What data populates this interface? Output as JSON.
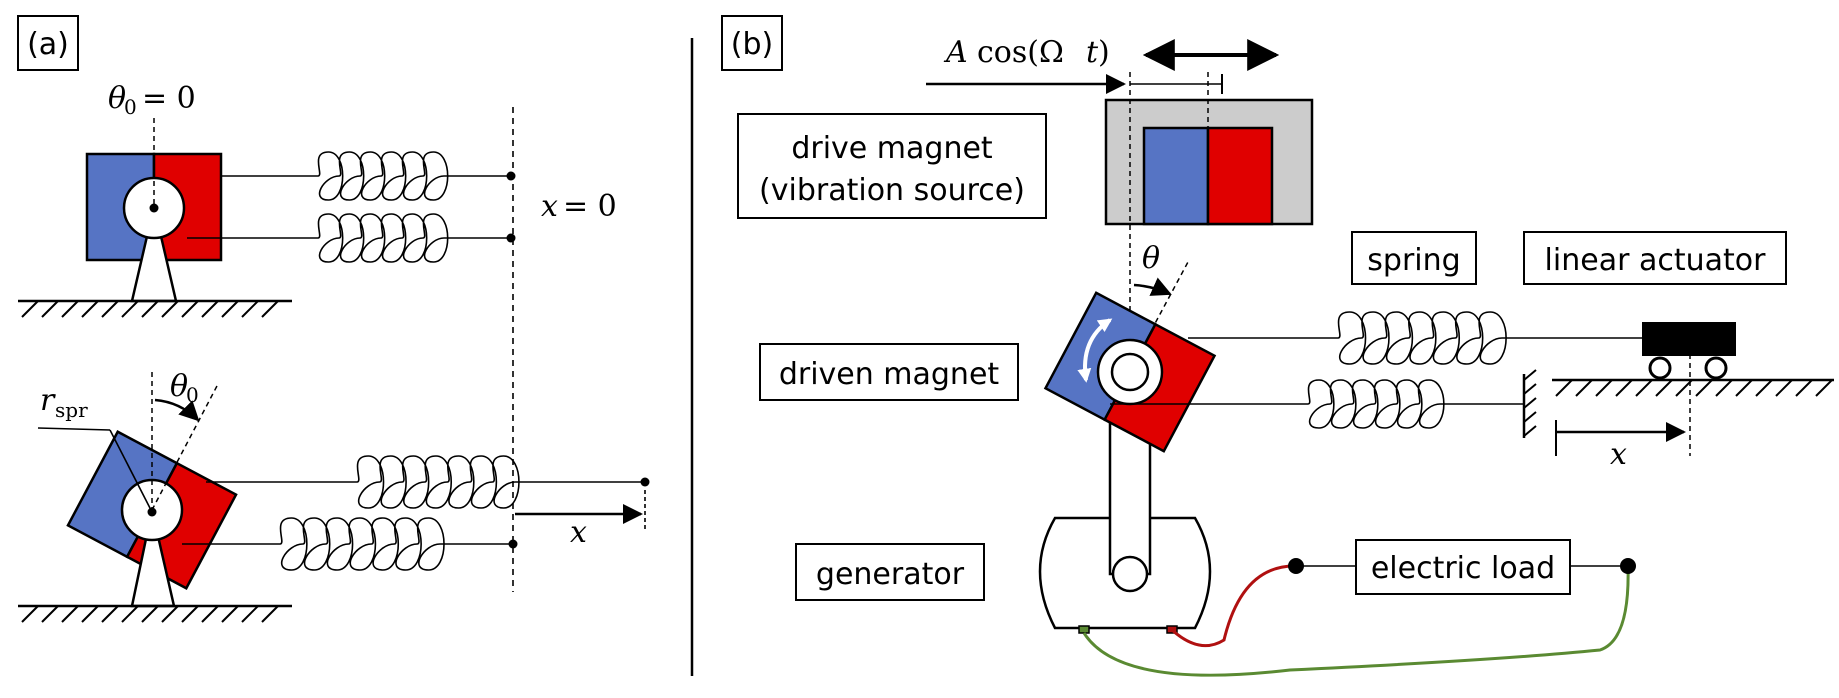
{
  "panel_a": {
    "label": "(a)",
    "theta0_eq": "= 0",
    "x_eq": "= 0",
    "theta0_sym": "θ",
    "theta0_sub": "0",
    "r_sym": "r",
    "r_sub": "spr",
    "x_sym": "x"
  },
  "panel_b": {
    "label": "(b)",
    "drive_cos_A": "A",
    "drive_cos_fn": "cos(Ω",
    "drive_cos_t": "t",
    "drive_cos_close": ")",
    "drive_magnet_line1": "drive magnet",
    "drive_magnet_line2": "(vibration source)",
    "theta_sym": "θ",
    "spring": "spring",
    "linear_actuator": "linear actuator",
    "driven_magnet": "driven magnet",
    "x_sym": "x",
    "generator": "generator",
    "electric_load": "electric load"
  },
  "colors": {
    "magnet_blue": "#5674c4",
    "magnet_red": "#e00000",
    "drive_housing": "#cccccc",
    "wire_red": "#b01010",
    "wire_green": "#5a8a32",
    "ink": "#000000"
  }
}
